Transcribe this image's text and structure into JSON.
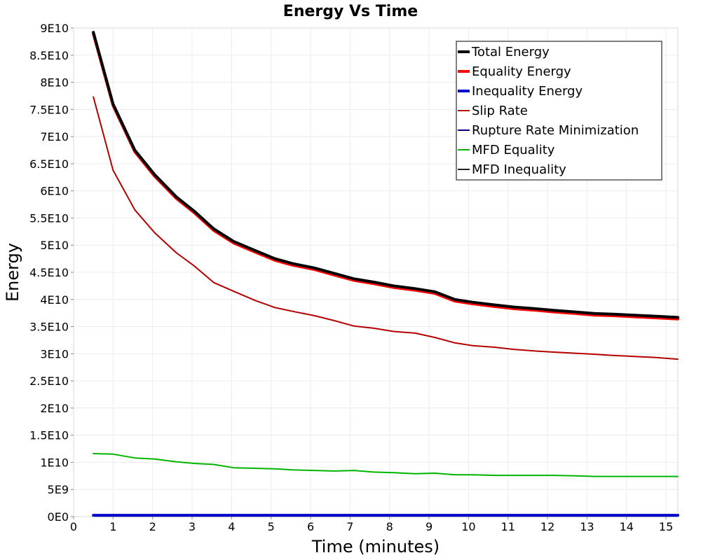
{
  "chart_data": {
    "type": "line",
    "title": "Energy Vs Time",
    "xlabel": "Time (minutes)",
    "ylabel": "Energy",
    "xlim": [
      0,
      15.3
    ],
    "ylim": [
      0,
      90000000000
    ],
    "x_ticks": [
      0,
      1,
      2,
      3,
      4,
      5,
      6,
      7,
      8,
      9,
      10,
      11,
      12,
      13,
      14,
      15
    ],
    "x_tick_labels": [
      "0",
      "1",
      "2",
      "3",
      "4",
      "5",
      "6",
      "7",
      "8",
      "9",
      "10",
      "11",
      "12",
      "13",
      "14",
      "15"
    ],
    "y_ticks": [
      0,
      5000000000,
      10000000000,
      15000000000,
      20000000000,
      25000000000,
      30000000000,
      35000000000,
      40000000000,
      45000000000,
      50000000000,
      55000000000,
      60000000000,
      65000000000,
      70000000000,
      75000000000,
      80000000000,
      85000000000,
      90000000000
    ],
    "y_tick_labels": [
      "0E0",
      "5E9",
      "1E10",
      "1.5E10",
      "2E10",
      "2.5E10",
      "3E10",
      "3.5E10",
      "4E10",
      "4.5E10",
      "5E10",
      "5.5E10",
      "6E10",
      "6.5E10",
      "7E10",
      "7.5E10",
      "8E10",
      "8.5E10",
      "9E10"
    ],
    "grid": true,
    "legend_position": "top-right",
    "x": [
      0.5,
      1.0,
      1.55,
      2.05,
      2.6,
      3.05,
      3.55,
      4.05,
      4.6,
      5.1,
      5.55,
      6.1,
      6.6,
      7.1,
      7.6,
      8.1,
      8.65,
      9.15,
      9.65,
      10.1,
      10.65,
      11.15,
      11.7,
      12.15,
      12.7,
      13.2,
      13.65,
      14.2,
      14.75,
      15.3
    ],
    "series": [
      {
        "name": "Total Energy",
        "color": "#000000",
        "width": 4,
        "values": [
          89200000000,
          76000000000,
          67500000000,
          63000000000,
          58900000000,
          56300000000,
          53000000000,
          50700000000,
          49000000000,
          47500000000,
          46600000000,
          45800000000,
          44800000000,
          43800000000,
          43200000000,
          42500000000,
          42000000000,
          41400000000,
          40000000000,
          39500000000,
          39000000000,
          38600000000,
          38300000000,
          38000000000,
          37700000000,
          37400000000,
          37300000000,
          37100000000,
          36900000000,
          36700000000
        ]
      },
      {
        "name": "Equality Energy",
        "color": "#ff0000",
        "width": 4,
        "values": [
          88900000000,
          75700000000,
          67200000000,
          62700000000,
          58600000000,
          56000000000,
          52700000000,
          50400000000,
          48700000000,
          47200000000,
          46300000000,
          45500000000,
          44500000000,
          43500000000,
          42900000000,
          42200000000,
          41700000000,
          41100000000,
          39700000000,
          39200000000,
          38700000000,
          38300000000,
          38000000000,
          37700000000,
          37400000000,
          37100000000,
          37000000000,
          36800000000,
          36600000000,
          36400000000
        ]
      },
      {
        "name": "Inequality Energy",
        "color": "#0000cc",
        "width": 4,
        "values": [
          250000000,
          250000000,
          250000000,
          250000000,
          250000000,
          250000000,
          250000000,
          250000000,
          250000000,
          250000000,
          250000000,
          250000000,
          250000000,
          250000000,
          250000000,
          250000000,
          250000000,
          250000000,
          250000000,
          250000000,
          250000000,
          250000000,
          250000000,
          250000000,
          250000000,
          250000000,
          250000000,
          250000000,
          250000000,
          250000000
        ]
      },
      {
        "name": "Slip Rate",
        "color": "#b40000",
        "width": 2,
        "values": [
          77300000000,
          63800000000,
          56500000000,
          52300000000,
          48600000000,
          46200000000,
          43100000000,
          41500000000,
          39800000000,
          38500000000,
          37800000000,
          37000000000,
          36100000000,
          35100000000,
          34700000000,
          34100000000,
          33800000000,
          33000000000,
          32000000000,
          31500000000,
          31200000000,
          30800000000,
          30500000000,
          30300000000,
          30100000000,
          29900000000,
          29700000000,
          29500000000,
          29300000000,
          29000000000
        ]
      },
      {
        "name": "Rupture Rate Minimization",
        "color": "#000080",
        "width": 2,
        "values": [
          250000000,
          250000000,
          250000000,
          250000000,
          250000000,
          250000000,
          250000000,
          250000000,
          250000000,
          250000000,
          250000000,
          250000000,
          250000000,
          250000000,
          250000000,
          250000000,
          250000000,
          250000000,
          250000000,
          250000000,
          250000000,
          250000000,
          250000000,
          250000000,
          250000000,
          250000000,
          250000000,
          250000000,
          250000000,
          250000000
        ]
      },
      {
        "name": "MFD Equality",
        "color": "#00b400",
        "width": 2,
        "values": [
          11600000000,
          11500000000,
          10800000000,
          10600000000,
          10100000000,
          9800000000,
          9600000000,
          9000000000,
          8900000000,
          8800000000,
          8600000000,
          8500000000,
          8400000000,
          8500000000,
          8200000000,
          8100000000,
          7900000000,
          8000000000,
          7700000000,
          7700000000,
          7600000000,
          7600000000,
          7600000000,
          7600000000,
          7500000000,
          7400000000,
          7400000000,
          7400000000,
          7400000000,
          7400000000
        ]
      },
      {
        "name": "MFD Inequality",
        "color": "#222222",
        "width": 2,
        "values": [
          100000000,
          100000000,
          100000000,
          100000000,
          100000000,
          100000000,
          100000000,
          100000000,
          100000000,
          100000000,
          100000000,
          100000000,
          100000000,
          100000000,
          100000000,
          100000000,
          100000000,
          100000000,
          100000000,
          100000000,
          100000000,
          100000000,
          100000000,
          100000000,
          100000000,
          100000000,
          100000000,
          100000000,
          100000000,
          100000000
        ]
      }
    ]
  }
}
